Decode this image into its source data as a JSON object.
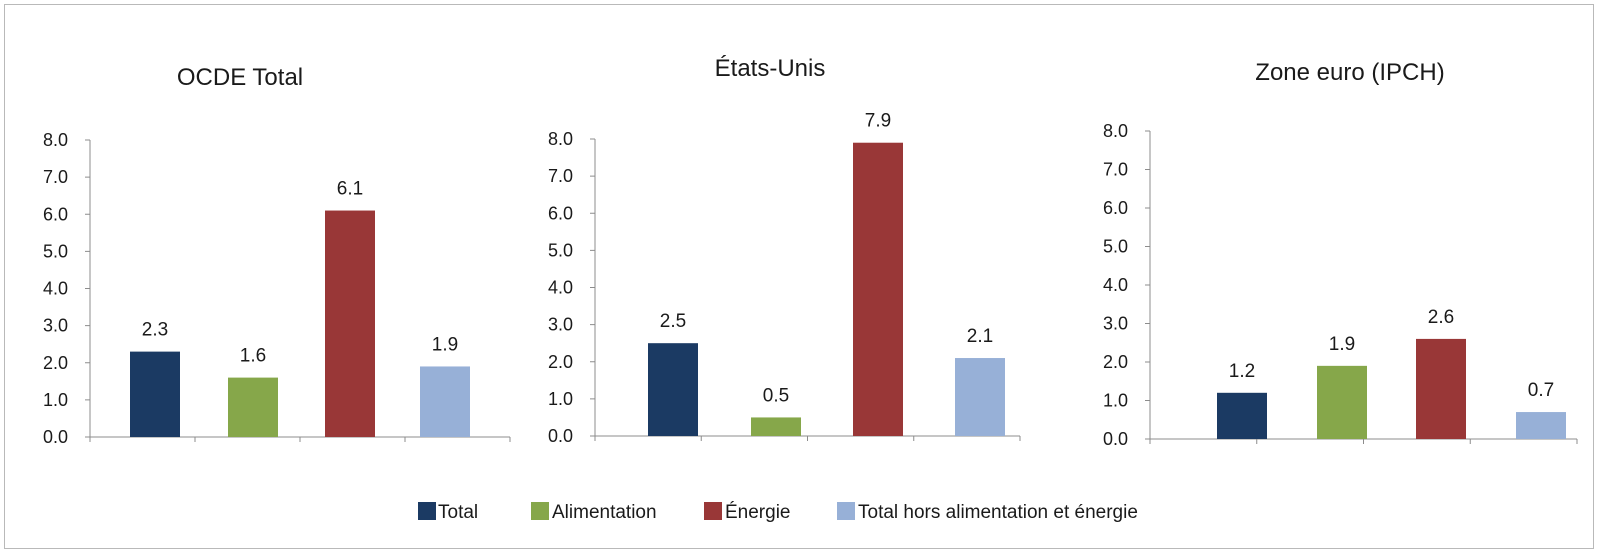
{
  "chart_data": {
    "type": "bar",
    "categories": [
      "Total",
      "Alimentation",
      "Énergie",
      "Total hors alimentation et énergie"
    ],
    "colors": [
      "#1b3a63",
      "#86a74a",
      "#993737",
      "#97b0d7"
    ],
    "ylim": [
      0,
      8
    ],
    "yticks": [
      "0.0",
      "1.0",
      "2.0",
      "3.0",
      "4.0",
      "5.0",
      "6.0",
      "7.0",
      "8.0"
    ],
    "legend_position": "bottom",
    "grid": false,
    "panels": [
      {
        "title": "OCDE Total",
        "values": [
          2.3,
          1.6,
          6.1,
          1.9
        ],
        "labels": [
          "2.3",
          "1.6",
          "6.1",
          "1.9"
        ]
      },
      {
        "title": "États-Unis",
        "values": [
          2.5,
          0.5,
          7.9,
          2.1
        ],
        "labels": [
          "2.5",
          "0.5",
          "7.9",
          "2.1"
        ]
      },
      {
        "title": "Zone euro (IPCH)",
        "values": [
          1.2,
          1.9,
          2.6,
          0.7
        ],
        "labels": [
          "1.2",
          "1.9",
          "2.6",
          "0.7"
        ]
      }
    ]
  }
}
